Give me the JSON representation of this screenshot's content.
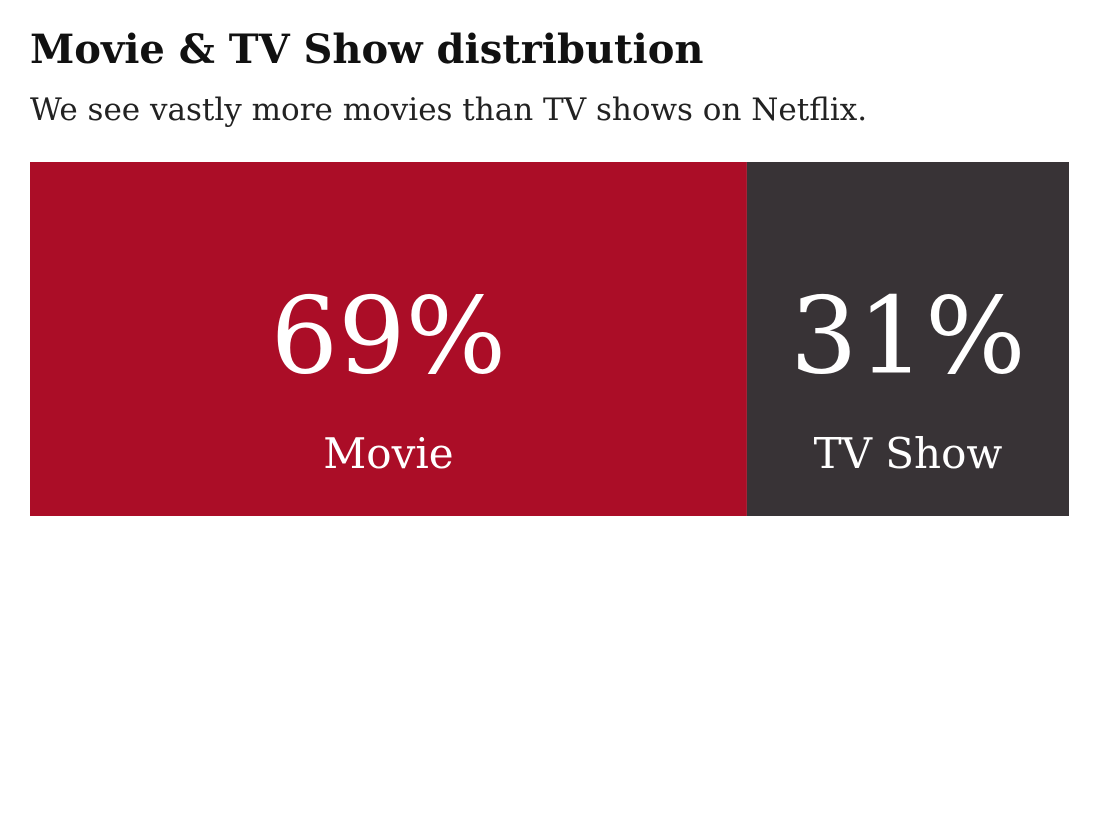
{
  "chart_data": {
    "type": "bar",
    "orientation": "horizontal-stacked",
    "title": "Movie & TV Show distribution",
    "subtitle": "We see vastly more movies than TV shows on Netflix.",
    "categories": [
      "Movie",
      "TV Show"
    ],
    "values": [
      0.69,
      0.31
    ],
    "value_labels": [
      "69%",
      "31%"
    ],
    "colors": [
      "#ab0d27",
      "#383336"
    ],
    "text_color": "#ffffff",
    "xlim": [
      0,
      1
    ],
    "grid": false,
    "legend": "none",
    "axes": "hidden"
  }
}
